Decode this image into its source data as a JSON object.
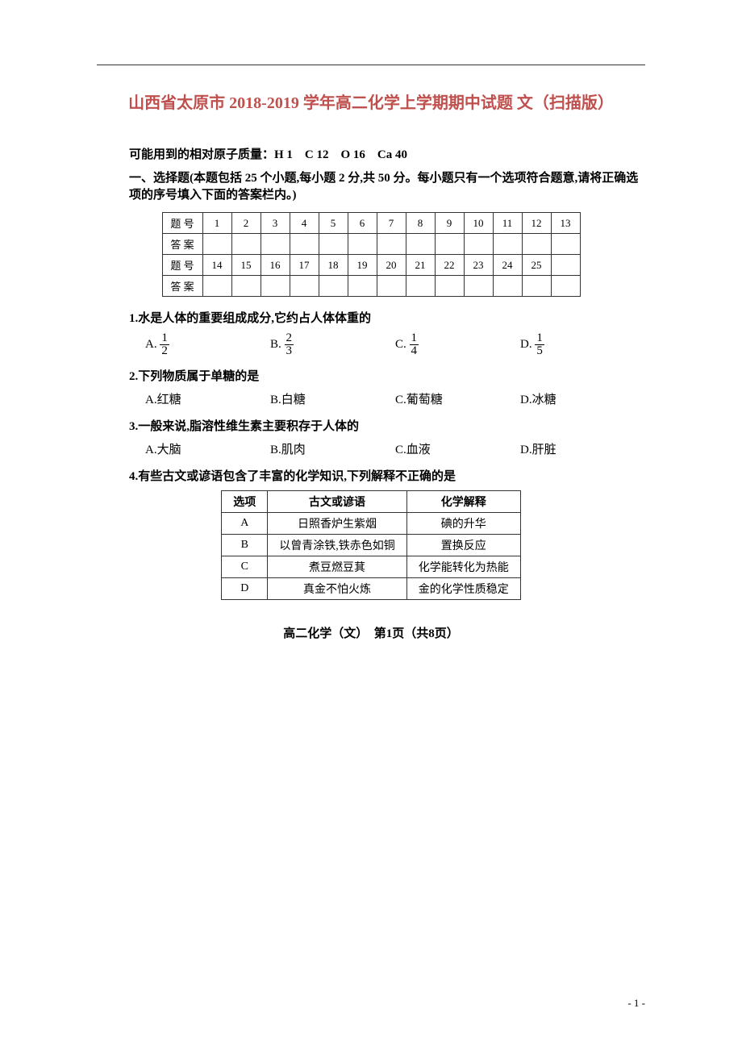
{
  "title": "山西省太原市 2018-2019 学年高二化学上学期期中试题 文（扫描版）",
  "atomic_mass_label": "可能用到的相对原子质量：",
  "atomic_mass_values": "H 1　C 12　O 16　Ca 40",
  "section_intro": "一、选择题(本题包括 25 个小题,每小题 2 分,共 50 分。每小题只有一个选项符合题意,请将正确选项的序号填入下面的答案栏内。)",
  "answer_grid": {
    "row_label": "题 号",
    "answer_label": "答 案",
    "row1": [
      "1",
      "2",
      "3",
      "4",
      "5",
      "6",
      "7",
      "8",
      "9",
      "10",
      "11",
      "12",
      "13"
    ],
    "row2": [
      "14",
      "15",
      "16",
      "17",
      "18",
      "19",
      "20",
      "21",
      "22",
      "23",
      "24",
      "25",
      ""
    ]
  },
  "q1": {
    "text": "1.水是人体的重要组成成分,它约占人体体重的",
    "a_num": "1",
    "a_den": "2",
    "b_num": "2",
    "b_den": "3",
    "c_num": "1",
    "c_den": "4",
    "d_num": "1",
    "d_den": "5"
  },
  "q2": {
    "text": "2.下列物质属于单糖的是",
    "a": "A.红糖",
    "b": "B.白糖",
    "c": "C.葡萄糖",
    "d": "D.冰糖"
  },
  "q3": {
    "text": "3.一般来说,脂溶性维生素主要积存于人体的",
    "a": "A.大脑",
    "b": "B.肌肉",
    "c": "C.血液",
    "d": "D.肝脏"
  },
  "q4": {
    "text": "4.有些古文或谚语包含了丰富的化学知识,下列解释不正确的是",
    "headers": [
      "选项",
      "古文或谚语",
      "化学解释"
    ],
    "rows": [
      [
        "A",
        "日照香炉生紫烟",
        "碘的升华"
      ],
      [
        "B",
        "以曾青涂铁,铁赤色如铜",
        "置换反应"
      ],
      [
        "C",
        "煮豆燃豆萁",
        "化学能转化为热能"
      ],
      [
        "D",
        "真金不怕火炼",
        "金的化学性质稳定"
      ]
    ]
  },
  "footer": "高二化学（文）　第1页（共8页）",
  "page_num": "- 1 -",
  "colors": {
    "title_color": "#c0504d",
    "text_color": "#000000",
    "border_color": "#333333"
  }
}
